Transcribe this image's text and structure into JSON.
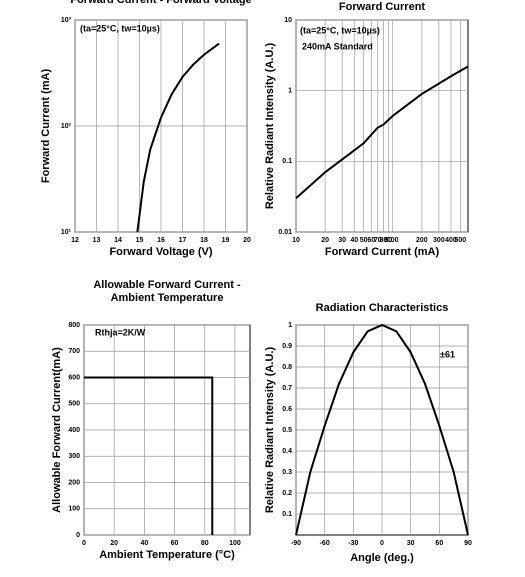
{
  "chart_data": [
    {
      "type": "line",
      "title": "Forward Current - Forward Voltage",
      "x_label": "Forward Voltage (V)",
      "y_label": "Forward Current (mA)",
      "annotations": [
        "(ta=25°C, tw=10µs)"
      ],
      "color": "#000000",
      "grid": true,
      "yscale": "log",
      "x": [
        14.9,
        15.2,
        15.5,
        16,
        16.5,
        17,
        17.5,
        18,
        18.7
      ],
      "values": [
        10,
        30,
        60,
        120,
        200,
        290,
        380,
        470,
        600
      ],
      "xlim": [
        12,
        20
      ],
      "xticks": [
        12,
        13,
        14,
        15,
        16,
        17,
        18,
        19,
        20
      ],
      "ylim": [
        10,
        1000
      ],
      "yticks": [
        {
          "value": 10,
          "label": "10¹"
        },
        {
          "value": 100,
          "label": "10²"
        },
        {
          "value": 1000,
          "label": "10³"
        }
      ]
    },
    {
      "type": "line",
      "title": "Forward Current",
      "x_label": "Forward Current (mA)",
      "y_label": "Relative Radiant Intensity (A.U.)",
      "annotations": [
        "(ta=25°C, tw=10µs)",
        "240mA Standard"
      ],
      "color": "#000000",
      "grid": true,
      "xscale": "log",
      "yscale": "log",
      "x": [
        10,
        20,
        50,
        70,
        80,
        100,
        200,
        400,
        600
      ],
      "values": [
        0.03,
        0.07,
        0.18,
        0.3,
        0.33,
        0.44,
        0.9,
        1.6,
        2.2
      ],
      "xlim": [
        10,
        600
      ],
      "xticks": [
        10,
        20,
        30,
        40,
        50,
        60,
        70,
        80,
        90,
        100,
        200,
        300,
        400,
        500
      ],
      "ylim": [
        0.01,
        10
      ],
      "yticks": [
        0.01,
        0.1,
        1,
        10
      ]
    },
    {
      "type": "line",
      "title": [
        "Allowable Forward Current -",
        "Ambient Temperature"
      ],
      "x_label": "Ambient Temperature (°C)",
      "y_label": "Allowable Forward Current(mA)",
      "annotations": [
        "Rthja=2K/W"
      ],
      "color": "#000000",
      "grid": true,
      "x": [
        0,
        85,
        85
      ],
      "values": [
        600,
        600,
        0
      ],
      "xlim": [
        0,
        110
      ],
      "xticks": [
        0,
        20,
        40,
        60,
        80,
        100
      ],
      "ylim": [
        0,
        800
      ],
      "yticks": [
        0,
        100,
        200,
        300,
        400,
        500,
        600,
        700,
        800
      ]
    },
    {
      "type": "line",
      "title": "Radiation Characteristics",
      "x_label": "Angle (deg.)",
      "y_label": "Relative Radiant Intensity (A.U.)",
      "annotations": [
        "±61"
      ],
      "color": "#000000",
      "grid": true,
      "x": [
        -90,
        -75,
        -60,
        -45,
        -30,
        -15,
        0,
        15,
        30,
        45,
        60,
        75,
        90
      ],
      "values": [
        0,
        0.3,
        0.52,
        0.72,
        0.87,
        0.97,
        1,
        0.97,
        0.87,
        0.72,
        0.52,
        0.3,
        0
      ],
      "xlim": [
        -90,
        90
      ],
      "xticks": [
        -90,
        -60,
        -30,
        0,
        30,
        60,
        90
      ],
      "ylim": [
        0,
        1
      ],
      "yticks": [
        0.1,
        0.2,
        0.3,
        0.4,
        0.5,
        0.6,
        0.7,
        0.8,
        0.9,
        1.0
      ]
    }
  ]
}
